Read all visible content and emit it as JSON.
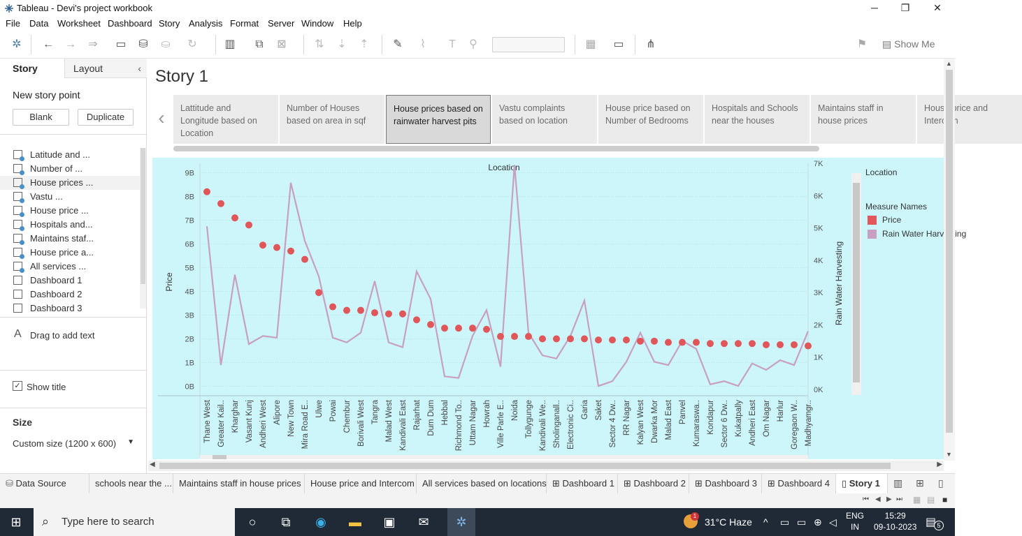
{
  "window": {
    "title": "Tableau - Devi's project workbook",
    "controls": [
      "─",
      "❐",
      "✕"
    ]
  },
  "menu": [
    "File",
    "Data",
    "Worksheet",
    "Dashboard",
    "Story",
    "Analysis",
    "Format",
    "Server",
    "Window",
    "Help"
  ],
  "toolbar": {
    "show_me": "Show Me"
  },
  "left_pane": {
    "tabs": [
      "Story",
      "Layout"
    ],
    "new_story_point": "New story point",
    "blank_button": "Blank",
    "duplicate_button": "Duplicate",
    "sheets": [
      {
        "label": "Latitude and ...",
        "type": "worksheet"
      },
      {
        "label": "Number of ...",
        "type": "worksheet"
      },
      {
        "label": "House prices ...",
        "type": "worksheet"
      },
      {
        "label": "Vastu ...",
        "type": "worksheet"
      },
      {
        "label": "House price ...",
        "type": "worksheet"
      },
      {
        "label": "Hospitals and...",
        "type": "worksheet"
      },
      {
        "label": "Maintains staf...",
        "type": "worksheet"
      },
      {
        "label": "House price a...",
        "type": "worksheet"
      },
      {
        "label": "All services ...",
        "type": "worksheet"
      },
      {
        "label": "Dashboard 1",
        "type": "dashboard"
      },
      {
        "label": "Dashboard 2",
        "type": "dashboard"
      },
      {
        "label": "Dashboard 3",
        "type": "dashboard"
      }
    ],
    "drag_text": "Drag to add text",
    "show_title": "Show title",
    "size_heading": "Size",
    "size_value": "Custom size (1200 x 600)"
  },
  "story": {
    "title": "Story 1",
    "points": [
      "Lattitude and Longitude based on Location",
      "Number of Houses based on area in sqf",
      "House prices based on rainwater harvest pits",
      "Vastu complaints based on location",
      "House price based on Number of Bedrooms",
      "Hospitals and Schools near the houses",
      "Maintains staff in house prices",
      "House price and Intercom"
    ],
    "active_point": 2
  },
  "legend": {
    "title": "Location",
    "measure_heading": "Measure Names",
    "items": [
      {
        "label": "Price",
        "color": "#e15759"
      },
      {
        "label": "Rain Water Harvesting",
        "color": "#c99fc1"
      }
    ]
  },
  "chart_data": {
    "type": "line",
    "title": "Location",
    "ylabel": "Price",
    "y2label": "Rain Water Harvesting",
    "ylim": [
      -400000000,
      9400000000
    ],
    "y2lim": [
      -200,
      7000
    ],
    "yticks": [
      "0B",
      "1B",
      "2B",
      "3B",
      "4B",
      "5B",
      "6B",
      "7B",
      "8B",
      "9B"
    ],
    "y2ticks": [
      "0K",
      "1K",
      "2K",
      "3K",
      "4K",
      "5K",
      "6K",
      "7K"
    ],
    "categories": [
      "Thane West",
      "Greater Kail..",
      "Kharghar",
      "Vasant Kunj",
      "Andheri West",
      "Alipore",
      "New Town",
      "Mira Road E..",
      "Ulwe",
      "Powai",
      "Chembur",
      "Borivali West",
      "Tangra",
      "Malad West",
      "Kandivali East",
      "Rajarhat",
      "Dum Dum",
      "Hebbal",
      "Richmond To..",
      "Uttam Nagar",
      "Howrah",
      "Ville Parle E..",
      "Noida",
      "Tollygunge",
      "Kandivali We..",
      "Sholinganall..",
      "Electronic Ci..",
      "Garia",
      "Saket",
      "Sector 4 Dw..",
      "RR Nagar",
      "Kalyan West",
      "Dwarka Mor",
      "Malad East",
      "Panvel",
      "Kumaraswa..",
      "Kondapur",
      "Sector 6 Dw..",
      "Kukatpally",
      "Andheri East",
      "Om Nagar",
      "Harlur",
      "Goregaon W..",
      "Madhyamgr.."
    ],
    "series": [
      {
        "name": "Price",
        "type": "scatter",
        "axis": "left",
        "values": [
          8200000000,
          7700000000,
          7100000000,
          6800000000,
          5950000000,
          5850000000,
          5700000000,
          5350000000,
          3950000000,
          3350000000,
          3200000000,
          3200000000,
          3100000000,
          3050000000,
          3050000000,
          2800000000,
          2600000000,
          2450000000,
          2450000000,
          2450000000,
          2400000000,
          2100000000,
          2100000000,
          2100000000,
          2000000000,
          2000000000,
          2000000000,
          2000000000,
          1950000000,
          1950000000,
          1950000000,
          1900000000,
          1900000000,
          1850000000,
          1850000000,
          1850000000,
          1800000000,
          1800000000,
          1800000000,
          1800000000,
          1750000000,
          1750000000,
          1750000000,
          1700000000
        ]
      },
      {
        "name": "Rain Water Harvesting",
        "type": "line",
        "axis": "right",
        "values": [
          5050,
          750,
          3550,
          1400,
          1650,
          1600,
          6400,
          4600,
          3500,
          1600,
          1450,
          1750,
          3350,
          1450,
          1300,
          3650,
          2800,
          400,
          350,
          1650,
          2450,
          700,
          6950,
          1750,
          1050,
          950,
          1650,
          2750,
          100,
          250,
          850,
          1750,
          850,
          750,
          1500,
          1250,
          150,
          250,
          100,
          800,
          600,
          900,
          750,
          1800
        ]
      }
    ]
  },
  "sheet_tabs": [
    "Data Source",
    "schools near the ...",
    "Maintains staff in house prices",
    "House price and Intercom",
    "All services based on locations",
    "Dashboard 1",
    "Dashboard 2",
    "Dashboard 3",
    "Dashboard 4",
    "Story 1"
  ],
  "taskbar": {
    "search_placeholder": "Type here to search",
    "weather": "31°C  Haze",
    "lang": "ENG",
    "region": "IN",
    "time": "15:29",
    "date": "09-10-2023",
    "notif_count": "5",
    "weather_badge": "1"
  }
}
